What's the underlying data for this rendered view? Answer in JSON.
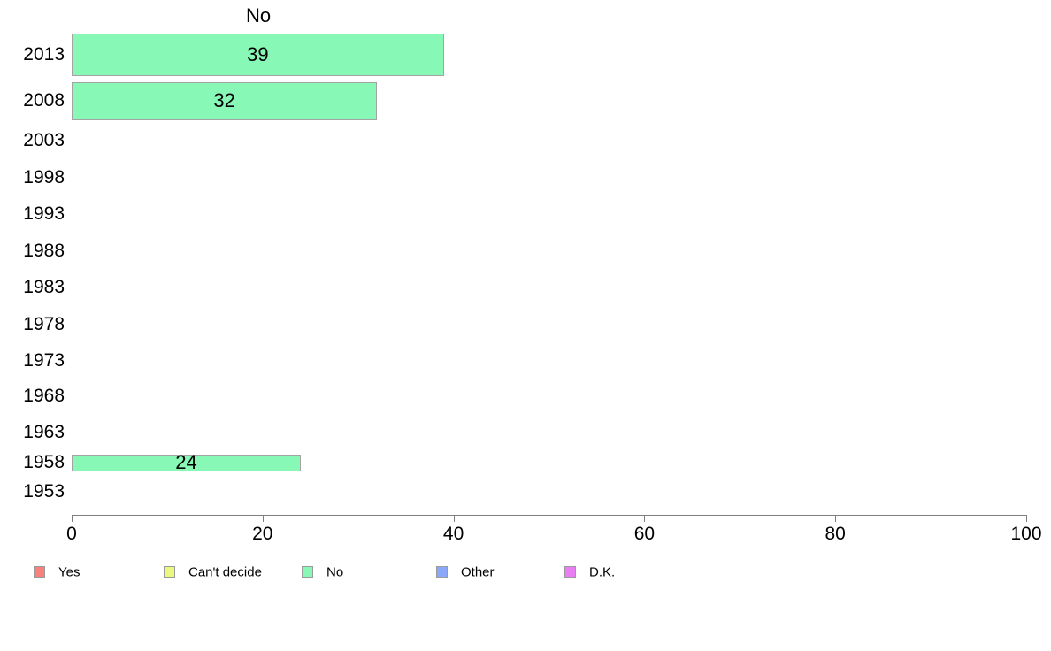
{
  "chart_data": {
    "type": "bar",
    "orientation": "horizontal",
    "title": "No",
    "categories": [
      "2013",
      "2008",
      "2003",
      "1998",
      "1993",
      "1988",
      "1983",
      "1978",
      "1973",
      "1968",
      "1963",
      "1958",
      "1953"
    ],
    "values": [
      39,
      32,
      null,
      null,
      null,
      null,
      null,
      null,
      null,
      null,
      null,
      24,
      null
    ],
    "bar_value_labels": [
      "39",
      "32",
      "",
      "",
      "",
      "",
      "",
      "",
      "",
      "",
      "",
      "24",
      ""
    ],
    "xlabel": "",
    "ylabel": "",
    "xlim": [
      0,
      100
    ],
    "x_ticks": [
      0,
      20,
      40,
      60,
      80,
      100
    ],
    "grid": false,
    "legend_position": "bottom",
    "bar_color": "#88f8b7",
    "bar_border_color": "#a3a3a3",
    "axis_color": "#7f7f7f",
    "text_color": "#000000",
    "legend": [
      {
        "label": "Yes",
        "color": "#f8817d"
      },
      {
        "label": "Can't decide",
        "color": "#eaf87f"
      },
      {
        "label": "No",
        "color": "#88f8b7"
      },
      {
        "label": "Other",
        "color": "#8ba7f8"
      },
      {
        "label": "D.K.",
        "color": "#e77ef2"
      }
    ]
  }
}
